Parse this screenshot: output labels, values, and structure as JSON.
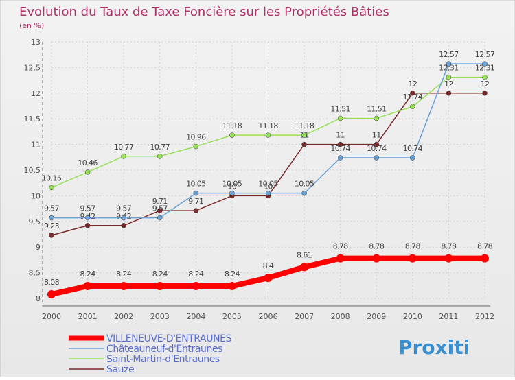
{
  "chart_data": {
    "type": "line",
    "title": "Evolution du Taux de Taxe Foncière sur les Propriétés Bâties",
    "subtitle": "(en %)",
    "x": [
      "2000",
      "2001",
      "2002",
      "2003",
      "2004",
      "2005",
      "2006",
      "2007",
      "2008",
      "2009",
      "2010",
      "2011",
      "2012"
    ],
    "ylim": [
      8,
      13
    ],
    "yticks": [
      "8",
      "8.5",
      "9",
      "9.5",
      "10",
      "10.5",
      "11",
      "11.5",
      "12",
      "12.5",
      "13"
    ],
    "grid": true,
    "legend_position": "bottom-left",
    "series": [
      {
        "name": "VILLENEUVE-D'ENTRAUNES",
        "color": "#ff0000",
        "values": [
          8.08,
          8.24,
          8.24,
          8.24,
          8.24,
          8.24,
          8.4,
          8.61,
          8.78,
          8.78,
          8.78,
          8.78,
          8.78
        ],
        "labels": [
          "8.08",
          "8.24",
          "8.24",
          "8.24",
          "8.24",
          "8.24",
          "8.4",
          "8.61",
          "8.78",
          "8.78",
          "8.78",
          "8.78",
          "8.78"
        ]
      },
      {
        "name": "Châteauneuf-d'Entraunes",
        "color": "#6aa2d6",
        "values": [
          9.57,
          9.57,
          9.57,
          9.57,
          10.05,
          10.05,
          10.05,
          10.05,
          10.74,
          10.74,
          10.74,
          12.57,
          12.57
        ],
        "labels": [
          "9.57",
          "9.57",
          "9.57",
          "9.57",
          "10.05",
          "10.05",
          "10.05",
          "10.05",
          "10.74",
          "10.74",
          "10.74",
          "12.57",
          "12.57"
        ]
      },
      {
        "name": "Saint-Martin-d'Entraunes",
        "color": "#99e05a",
        "values": [
          10.16,
          10.46,
          10.77,
          10.77,
          10.96,
          11.18,
          11.18,
          11.18,
          11.51,
          11.51,
          11.74,
          12.31,
          12.31
        ],
        "labels": [
          "10.16",
          "10.46",
          "10.77",
          "10.77",
          "10.96",
          "11.18",
          "11.18",
          "11.18",
          "11.51",
          "11.51",
          "11.74",
          "12.31",
          "12.31"
        ]
      },
      {
        "name": "Sauze",
        "color": "#7a2a2a",
        "values": [
          9.23,
          9.42,
          9.42,
          9.71,
          9.71,
          10,
          10,
          11,
          11,
          11,
          12,
          12,
          12
        ],
        "labels": [
          "9.23",
          "9.42",
          "9.42",
          "9.71",
          "9.71",
          "10",
          "10",
          "11",
          "11",
          "11",
          "12",
          "12",
          "12"
        ]
      }
    ]
  },
  "logo": {
    "text": "Proxiti"
  }
}
